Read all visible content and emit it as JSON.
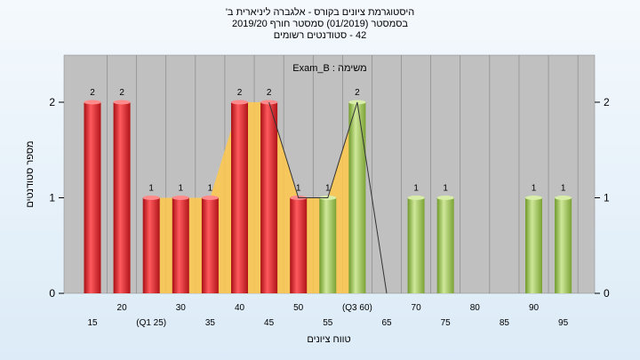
{
  "chart_data": {
    "type": "bar",
    "title_lines": [
      "היסטוגרמת ציונים בקורס - אלגברה ליניארית ב'",
      "בסמסטר (01/2019) סמסטר חורף 2019/20",
      "42 - סטודנטים רשומים"
    ],
    "annotation": "משימה : Exam_B",
    "xlabel": "טווח ציונים",
    "ylabel": "מספר סטודנטים",
    "ylim": [
      0,
      2.5
    ],
    "y_ticks": [
      0,
      1,
      2
    ],
    "x_ticks_lower": [
      "15",
      "(Q1 25)",
      "35",
      "45",
      "55",
      "65",
      "75",
      "85",
      "95"
    ],
    "x_ticks_upper": [
      "20",
      "30",
      "40",
      "50",
      "(Q3 60)",
      "70",
      "80",
      "90"
    ],
    "bars": [
      {
        "x": 15,
        "value": 2,
        "group": "red"
      },
      {
        "x": 20,
        "value": 2,
        "group": "red"
      },
      {
        "x": 25,
        "value": 1,
        "group": "red"
      },
      {
        "x": 30,
        "value": 1,
        "group": "red"
      },
      {
        "x": 35,
        "value": 1,
        "group": "red"
      },
      {
        "x": 40,
        "value": 2,
        "group": "red"
      },
      {
        "x": 45,
        "value": 2,
        "group": "red"
      },
      {
        "x": 50,
        "value": 1,
        "group": "red"
      },
      {
        "x": 55,
        "value": 1,
        "group": "green"
      },
      {
        "x": 60,
        "value": 2,
        "group": "green"
      },
      {
        "x": 70,
        "value": 1,
        "group": "green"
      },
      {
        "x": 75,
        "value": 1,
        "group": "green"
      },
      {
        "x": 90,
        "value": 1,
        "group": "green"
      },
      {
        "x": 95,
        "value": 1,
        "group": "green"
      }
    ],
    "area_series": [
      {
        "x": 25,
        "value": 1
      },
      {
        "x": 30,
        "value": 1
      },
      {
        "x": 35,
        "value": 1
      },
      {
        "x": 40,
        "value": 2
      },
      {
        "x": 45,
        "value": 2
      },
      {
        "x": 50,
        "value": 1
      },
      {
        "x": 55,
        "value": 1
      },
      {
        "x": 60,
        "value": 2
      }
    ],
    "line_series": [
      {
        "x": 45,
        "value": 2
      },
      {
        "x": 50,
        "value": 1
      },
      {
        "x": 55,
        "value": 1
      },
      {
        "x": 60,
        "value": 2
      },
      {
        "x": 65,
        "value": 0
      }
    ],
    "colors": {
      "plot_bg": "#c0c0c0",
      "red_bar": "#e8282c",
      "green_bar": "#a4c85a",
      "area": "#ffc84a",
      "line": "#333333"
    }
  }
}
